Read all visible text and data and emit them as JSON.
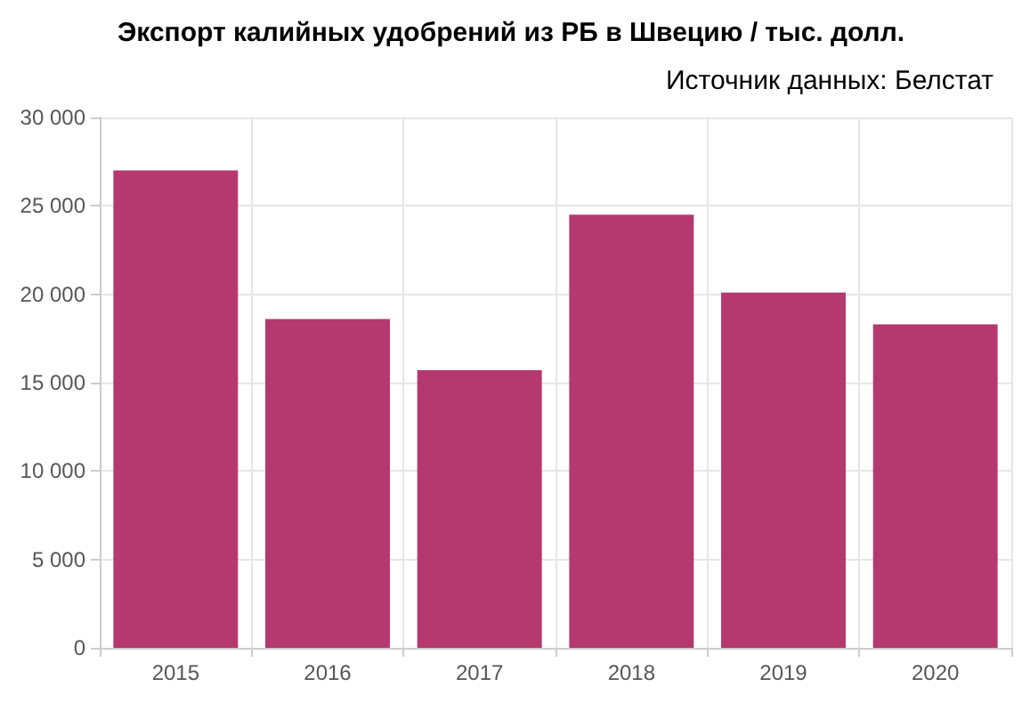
{
  "chart_data": {
    "type": "bar",
    "title": "Экспорт калийных удобрений из РБ в Швецию / тыс. долл.",
    "annotations": [
      "Источник данных: Белстат"
    ],
    "categories": [
      "2015",
      "2016",
      "2017",
      "2018",
      "2019",
      "2020"
    ],
    "values": [
      27000,
      18600,
      15700,
      24500,
      20100,
      18300
    ],
    "color": "#b5386f",
    "ylim": [
      0,
      30000
    ],
    "yticks": [
      {
        "value": 0,
        "label": "0"
      },
      {
        "value": 5000,
        "label": "5 000"
      },
      {
        "value": 10000,
        "label": "10 000"
      },
      {
        "value": 15000,
        "label": "15 000"
      },
      {
        "value": 20000,
        "label": "20 000"
      },
      {
        "value": 25000,
        "label": "25 000"
      },
      {
        "value": 30000,
        "label": "30 000"
      }
    ],
    "grid": true
  }
}
